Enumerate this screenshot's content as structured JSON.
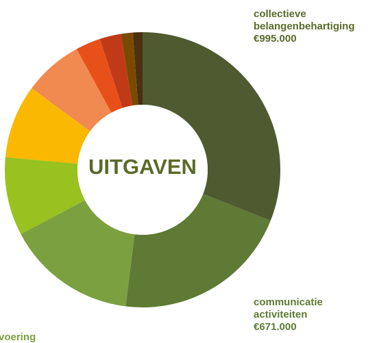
{
  "chart_data": {
    "type": "donut",
    "title": "UITGAVEN",
    "categories": [
      "collectieve belangenbehartiging",
      "communicatie activiteiten",
      "voering",
      null,
      null,
      null,
      null,
      null,
      null,
      null
    ],
    "values": [
      995000,
      671000,
      491000,
      295000,
      277000,
      223000,
      94000,
      80000,
      45000,
      36000
    ],
    "value_labels": [
      "€995.000",
      "€671.000",
      null,
      null,
      null,
      null,
      null,
      null,
      null,
      null
    ],
    "colors": [
      "#4f5a30",
      "#5e7a34",
      "#7ba040",
      "#98c21f",
      "#fbb800",
      "#f08a50",
      "#e8501a",
      "#c03a18",
      "#7a4a00",
      "#4a3010"
    ]
  }
}
